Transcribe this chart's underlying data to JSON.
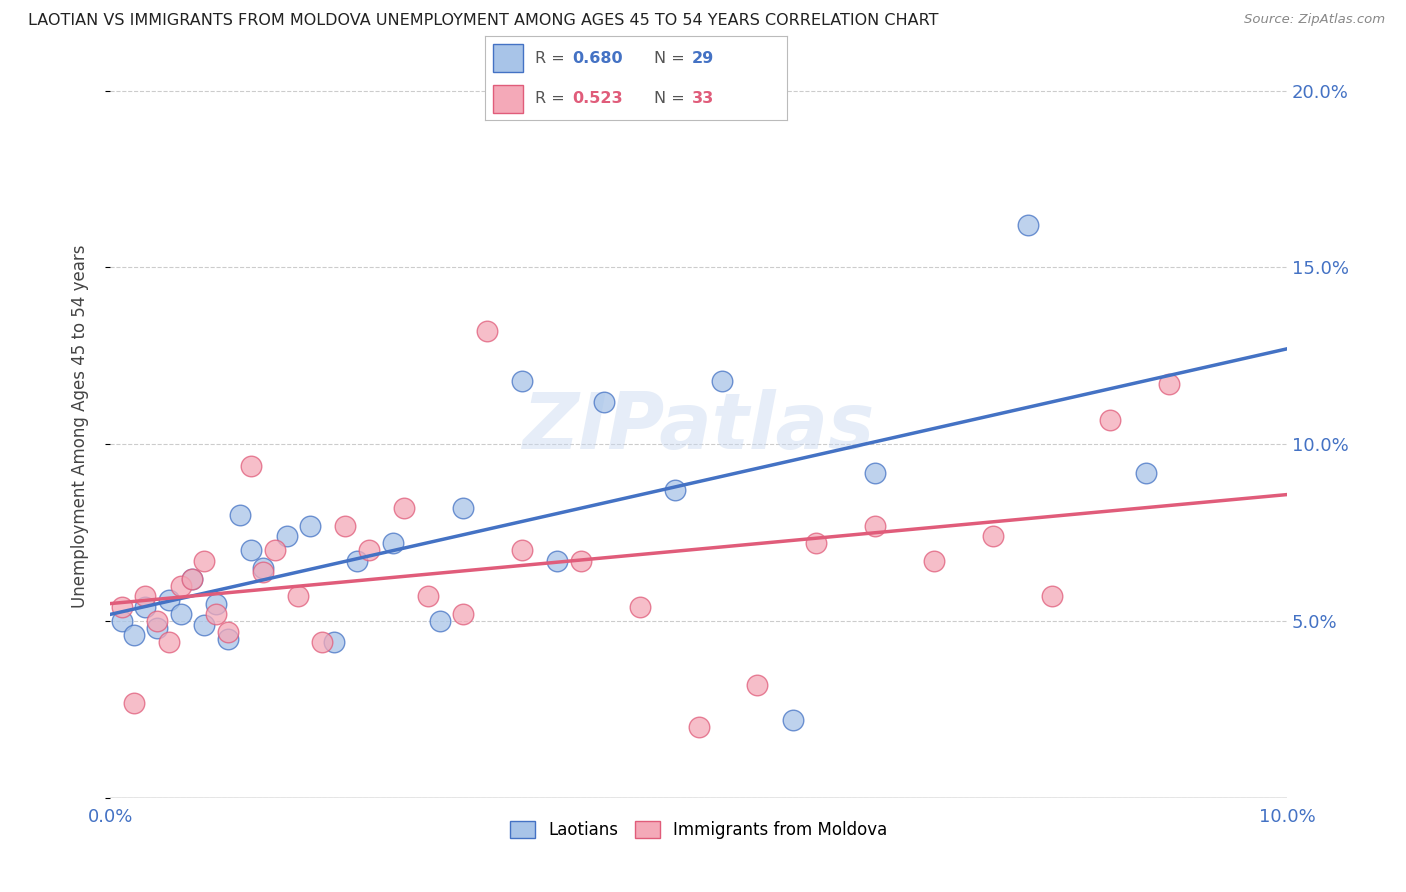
{
  "title": "LAOTIAN VS IMMIGRANTS FROM MOLDOVA UNEMPLOYMENT AMONG AGES 45 TO 54 YEARS CORRELATION CHART",
  "source": "Source: ZipAtlas.com",
  "ylabel_label": "Unemployment Among Ages 45 to 54 years",
  "xlim": [
    0.0,
    0.1
  ],
  "ylim": [
    0.0,
    0.21
  ],
  "x_ticks": [
    0.0,
    0.02,
    0.04,
    0.06,
    0.08,
    0.1
  ],
  "x_tick_labels": [
    "0.0%",
    "",
    "",
    "",
    "",
    "10.0%"
  ],
  "y_ticks": [
    0.0,
    0.05,
    0.1,
    0.15,
    0.2
  ],
  "y_tick_labels_right": [
    "",
    "5.0%",
    "10.0%",
    "15.0%",
    "20.0%"
  ],
  "background_color": "#ffffff",
  "grid_color": "#cccccc",
  "watermark": "ZIPatlas",
  "series": [
    {
      "name": "Laotians",
      "R": 0.68,
      "N": 29,
      "color_fill": "#a8c4e8",
      "color_line": "#4472c4",
      "x": [
        0.001,
        0.002,
        0.003,
        0.004,
        0.005,
        0.006,
        0.007,
        0.008,
        0.009,
        0.01,
        0.011,
        0.012,
        0.013,
        0.015,
        0.017,
        0.019,
        0.021,
        0.024,
        0.028,
        0.03,
        0.035,
        0.038,
        0.042,
        0.048,
        0.052,
        0.058,
        0.065,
        0.078,
        0.088
      ],
      "y": [
        0.05,
        0.046,
        0.054,
        0.048,
        0.056,
        0.052,
        0.062,
        0.049,
        0.055,
        0.045,
        0.08,
        0.07,
        0.065,
        0.074,
        0.077,
        0.044,
        0.067,
        0.072,
        0.05,
        0.082,
        0.118,
        0.067,
        0.112,
        0.087,
        0.118,
        0.022,
        0.092,
        0.162,
        0.092
      ]
    },
    {
      "name": "Immigrants from Moldova",
      "R": 0.523,
      "N": 33,
      "color_fill": "#f4a9b8",
      "color_line": "#e05c7a",
      "x": [
        0.001,
        0.002,
        0.003,
        0.004,
        0.005,
        0.006,
        0.007,
        0.008,
        0.009,
        0.01,
        0.012,
        0.013,
        0.014,
        0.016,
        0.018,
        0.02,
        0.022,
        0.025,
        0.027,
        0.03,
        0.032,
        0.035,
        0.04,
        0.045,
        0.05,
        0.055,
        0.06,
        0.065,
        0.07,
        0.075,
        0.08,
        0.085,
        0.09
      ],
      "y": [
        0.054,
        0.027,
        0.057,
        0.05,
        0.044,
        0.06,
        0.062,
        0.067,
        0.052,
        0.047,
        0.094,
        0.064,
        0.07,
        0.057,
        0.044,
        0.077,
        0.07,
        0.082,
        0.057,
        0.052,
        0.132,
        0.07,
        0.067,
        0.054,
        0.02,
        0.032,
        0.072,
        0.077,
        0.067,
        0.074,
        0.057,
        0.107,
        0.117
      ]
    }
  ],
  "legend_R_color_blue": "#4472c4",
  "legend_R_color_pink": "#e05c7a",
  "legend_N_color_blue": "#4472c4",
  "legend_N_color_pink": "#e05c7a",
  "tick_color": "#4472c4",
  "axis_color": "#888888"
}
